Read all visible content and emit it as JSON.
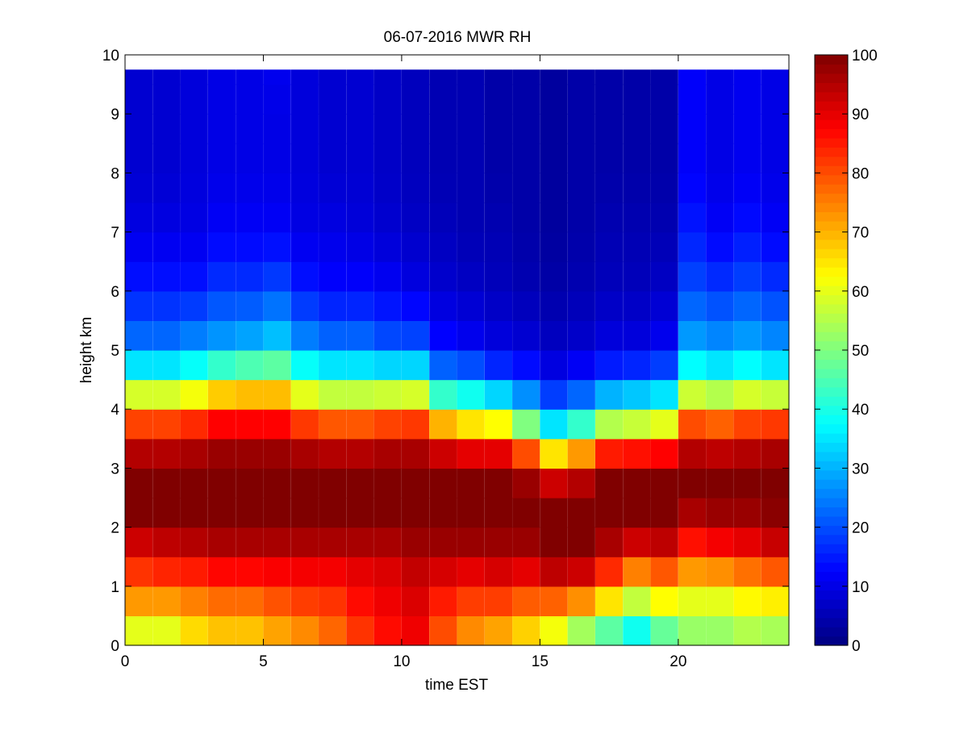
{
  "chart_data": {
    "type": "heatmap",
    "title": "06-07-2016 MWR RH",
    "xlabel": "time EST",
    "ylabel": "height km",
    "xlim": [
      0,
      24
    ],
    "ylim": [
      0,
      10
    ],
    "xticks": [
      0,
      5,
      10,
      15,
      20
    ],
    "yticks": [
      0,
      1,
      2,
      3,
      4,
      5,
      6,
      7,
      8,
      9,
      10
    ],
    "colorbar": {
      "colormap": "jet",
      "range": [
        0,
        100
      ],
      "ticks": [
        0,
        10,
        20,
        30,
        40,
        50,
        60,
        70,
        80,
        90,
        100
      ]
    },
    "time_hours": [
      0,
      1,
      2,
      3,
      4,
      5,
      6,
      7,
      8,
      9,
      10,
      11,
      12,
      13,
      14,
      15,
      16,
      17,
      18,
      19,
      20,
      21,
      22,
      23
    ],
    "data_top_km": 9.75,
    "height_levels_km": [
      0.0,
      0.5,
      1.0,
      1.5,
      2.0,
      2.5,
      3.0,
      3.5,
      4.0,
      4.5,
      5.0,
      5.5,
      6.0,
      6.5,
      7.0,
      7.5,
      8.0,
      8.5,
      9.0,
      9.5
    ],
    "profile_keys_km": {
      "heights": [
        0.0,
        0.5,
        1.0,
        1.5,
        2.0,
        2.5,
        3.0,
        3.5,
        4.0,
        4.5,
        5.0,
        6.0,
        7.0,
        8.0,
        9.0,
        9.75
      ],
      "rh_by_hour": [
        [
          55,
          65,
          80,
          85,
          100,
          100,
          100,
          90,
          72,
          45,
          25,
          15,
          10,
          8,
          8,
          8
        ],
        [
          55,
          65,
          80,
          88,
          100,
          100,
          100,
          90,
          72,
          45,
          25,
          15,
          10,
          8,
          8,
          8
        ],
        [
          62,
          70,
          80,
          90,
          100,
          100,
          100,
          92,
          75,
          48,
          28,
          15,
          10,
          9,
          9,
          9
        ],
        [
          65,
          72,
          82,
          92,
          100,
          100,
          100,
          95,
          80,
          55,
          30,
          18,
          12,
          10,
          10,
          10
        ],
        [
          65,
          72,
          82,
          92,
          100,
          100,
          100,
          95,
          80,
          58,
          32,
          18,
          12,
          10,
          10,
          10
        ],
        [
          68,
          75,
          84,
          92,
          100,
          100,
          100,
          95,
          80,
          58,
          35,
          20,
          12,
          10,
          10,
          11
        ],
        [
          70,
          78,
          85,
          92,
          100,
          100,
          100,
          92,
          72,
          48,
          28,
          15,
          10,
          9,
          9,
          9
        ],
        [
          75,
          80,
          85,
          92,
          100,
          100,
          100,
          90,
          68,
          45,
          25,
          13,
          10,
          8,
          8,
          8
        ],
        [
          80,
          85,
          88,
          92,
          100,
          100,
          100,
          90,
          68,
          45,
          25,
          13,
          9,
          8,
          8,
          8
        ],
        [
          85,
          88,
          90,
          92,
          100,
          100,
          100,
          92,
          70,
          45,
          22,
          12,
          8,
          7,
          7,
          7
        ],
        [
          88,
          90,
          92,
          95,
          100,
          100,
          100,
          92,
          72,
          45,
          22,
          10,
          7,
          6,
          6,
          6
        ],
        [
          78,
          82,
          88,
          95,
          100,
          100,
          100,
          85,
          55,
          30,
          14,
          8,
          6,
          5,
          5,
          5
        ],
        [
          70,
          78,
          85,
          95,
          100,
          100,
          100,
          80,
          50,
          28,
          12,
          7,
          5,
          5,
          5,
          5
        ],
        [
          68,
          75,
          88,
          95,
          100,
          100,
          100,
          80,
          45,
          22,
          10,
          6,
          5,
          4,
          4,
          4
        ],
        [
          62,
          72,
          85,
          95,
          100,
          100,
          95,
          65,
          35,
          18,
          9,
          5,
          4,
          4,
          4,
          4
        ],
        [
          55,
          68,
          88,
          100,
          100,
          100,
          85,
          45,
          25,
          12,
          7,
          4,
          3,
          3,
          3,
          3
        ],
        [
          45,
          62,
          85,
          100,
          100,
          100,
          90,
          55,
          30,
          15,
          8,
          5,
          4,
          4,
          4,
          4
        ],
        [
          38,
          55,
          75,
          92,
          100,
          100,
          100,
          70,
          40,
          20,
          10,
          6,
          5,
          4,
          4,
          4
        ],
        [
          30,
          48,
          65,
          85,
          100,
          100,
          100,
          72,
          42,
          22,
          10,
          6,
          5,
          4,
          4,
          4
        ],
        [
          40,
          55,
          70,
          88,
          100,
          100,
          100,
          75,
          45,
          25,
          12,
          7,
          5,
          4,
          4,
          4
        ],
        [
          50,
          55,
          65,
          80,
          92,
          100,
          100,
          90,
          70,
          45,
          30,
          20,
          15,
          12,
          12,
          12
        ],
        [
          50,
          55,
          65,
          82,
          95,
          100,
          100,
          88,
          68,
          42,
          28,
          18,
          12,
          10,
          10,
          10
        ],
        [
          52,
          58,
          68,
          85,
          95,
          100,
          100,
          90,
          72,
          45,
          30,
          20,
          14,
          11,
          11,
          11
        ],
        [
          50,
          58,
          70,
          88,
          98,
          100,
          100,
          92,
          72,
          42,
          28,
          18,
          12,
          10,
          10,
          10
        ]
      ]
    }
  }
}
